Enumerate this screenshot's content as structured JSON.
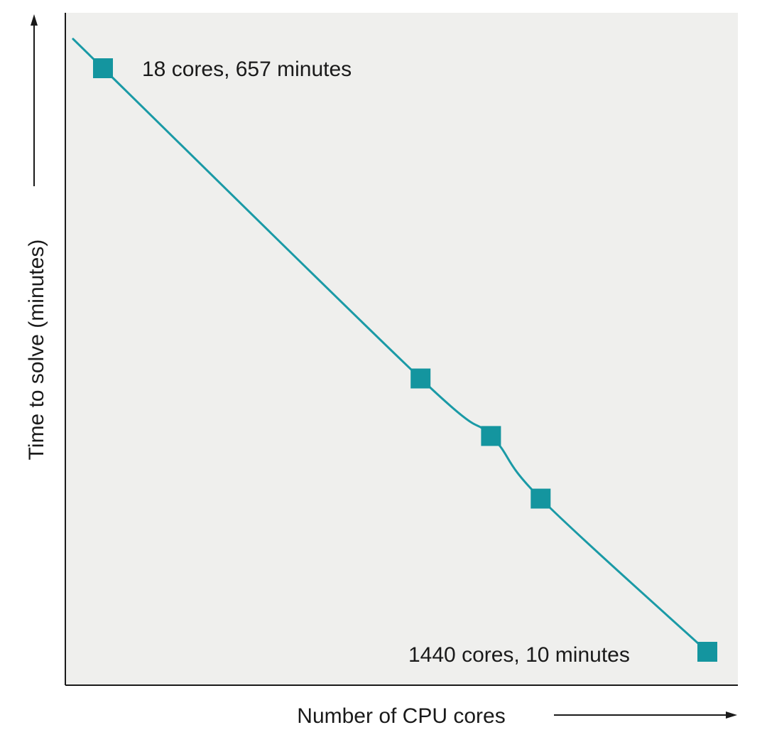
{
  "chart_data": {
    "type": "line",
    "xlabel": "Number of CPU cores",
    "ylabel": "Time to solve (minutes)",
    "scale": "log-log, no tick labels",
    "grid": false,
    "legend": "none",
    "series": [
      {
        "points": [
          {
            "x": 18,
            "y": 657
          },
          {
            "x": 180,
            "y": 71
          },
          {
            "x": 300,
            "y": 47
          },
          {
            "x": 430,
            "y": 30
          },
          {
            "x": 1440,
            "y": 10
          }
        ]
      }
    ],
    "annotations": [
      {
        "text": "18 cores, 657 minutes",
        "point": 0
      },
      {
        "text": "1440 cores, 10 minutes",
        "point": 4
      }
    ],
    "colors": {
      "line": "#1a9aa6",
      "marker": "#14959f",
      "plot_background": "#efefed",
      "axis": "#1a1a1a"
    }
  }
}
